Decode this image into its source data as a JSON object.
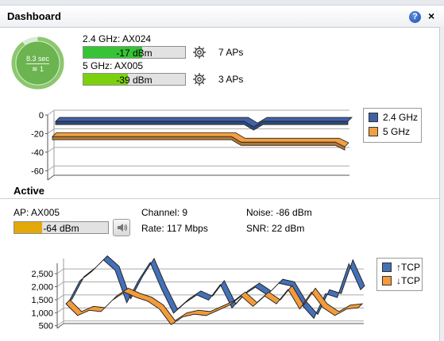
{
  "panel": {
    "title": "Dashboard"
  },
  "gauge": {
    "time_text": "8.3 sec",
    "count_text": "1",
    "progress": 0.9
  },
  "bands": [
    {
      "label": "2.4 GHz: AX024",
      "signal_text": "-17 dBm",
      "signal_fraction": 0.58,
      "color": "#36c436",
      "ap_count": "7 APs"
    },
    {
      "label": "5 GHz: AX005",
      "signal_text": "-39 dBm",
      "signal_fraction": 0.44,
      "color": "#7bd10e",
      "ap_count": "3 APs"
    }
  ],
  "chart_data": [
    {
      "type": "area",
      "yticks": [
        "0",
        "-20",
        "-40",
        "-60"
      ],
      "ylim": [
        -70,
        0
      ],
      "grid": true,
      "legend_position": "right",
      "series": [
        {
          "name": "2.4 GHz",
          "color": "#3e62a8",
          "values": [
            -12,
            -12,
            -12,
            -12,
            -12,
            -12,
            -12,
            -12,
            -12,
            -12,
            -12,
            -12,
            -12,
            -12,
            -12,
            -12,
            -12,
            -12,
            -12,
            -12,
            -12,
            -18,
            -12,
            -12,
            -12,
            -12,
            -12,
            -12,
            -12,
            -12,
            -12,
            -12
          ]
        },
        {
          "name": "5 GHz",
          "color": "#f0a043",
          "values": [
            -25,
            -25,
            -25,
            -25,
            -25,
            -25,
            -25,
            -25,
            -25,
            -25,
            -25,
            -25,
            -25,
            -25,
            -25,
            -25,
            -25,
            -25,
            -25,
            -25,
            -31,
            -31,
            -31,
            -31,
            -31,
            -31,
            -31,
            -31,
            -31,
            -31,
            -31,
            -36
          ]
        }
      ]
    },
    {
      "type": "line",
      "yticks": [
        "2,500",
        "2,000",
        "1,500",
        "1,000",
        "500"
      ],
      "ylim": [
        400,
        2900
      ],
      "grid": true,
      "legend_position": "right",
      "series": [
        {
          "name": "↑TCP",
          "color": "#4470b8",
          "values": [
            1200,
            2050,
            2400,
            2850,
            2450,
            1200,
            2050,
            2750,
            1700,
            800,
            1200,
            1500,
            1300,
            1900,
            1000,
            1500,
            1800,
            1500,
            1950,
            1850,
            1100,
            600,
            1550,
            1400,
            2700,
            1700
          ]
        },
        {
          "name": "↓TCP",
          "color": "#f39b3a",
          "values": [
            1250,
            800,
            1000,
            950,
            1400,
            1700,
            1500,
            1350,
            1050,
            450,
            750,
            850,
            800,
            1000,
            1200,
            1550,
            1150,
            1550,
            1250,
            1800,
            1050,
            1700,
            1100,
            800,
            1050,
            1100
          ]
        }
      ]
    }
  ],
  "active": {
    "title": "Active",
    "ap_label": "AP: AX005",
    "signal_text": "-64 dBm",
    "signal_fraction": 0.3,
    "signal_color": "#e3a80a",
    "channel": "Channel: 9",
    "rate": "Rate: 117 Mbps",
    "noise": "Noise: -86 dBm",
    "snr": "SNR: 22 dBm"
  }
}
